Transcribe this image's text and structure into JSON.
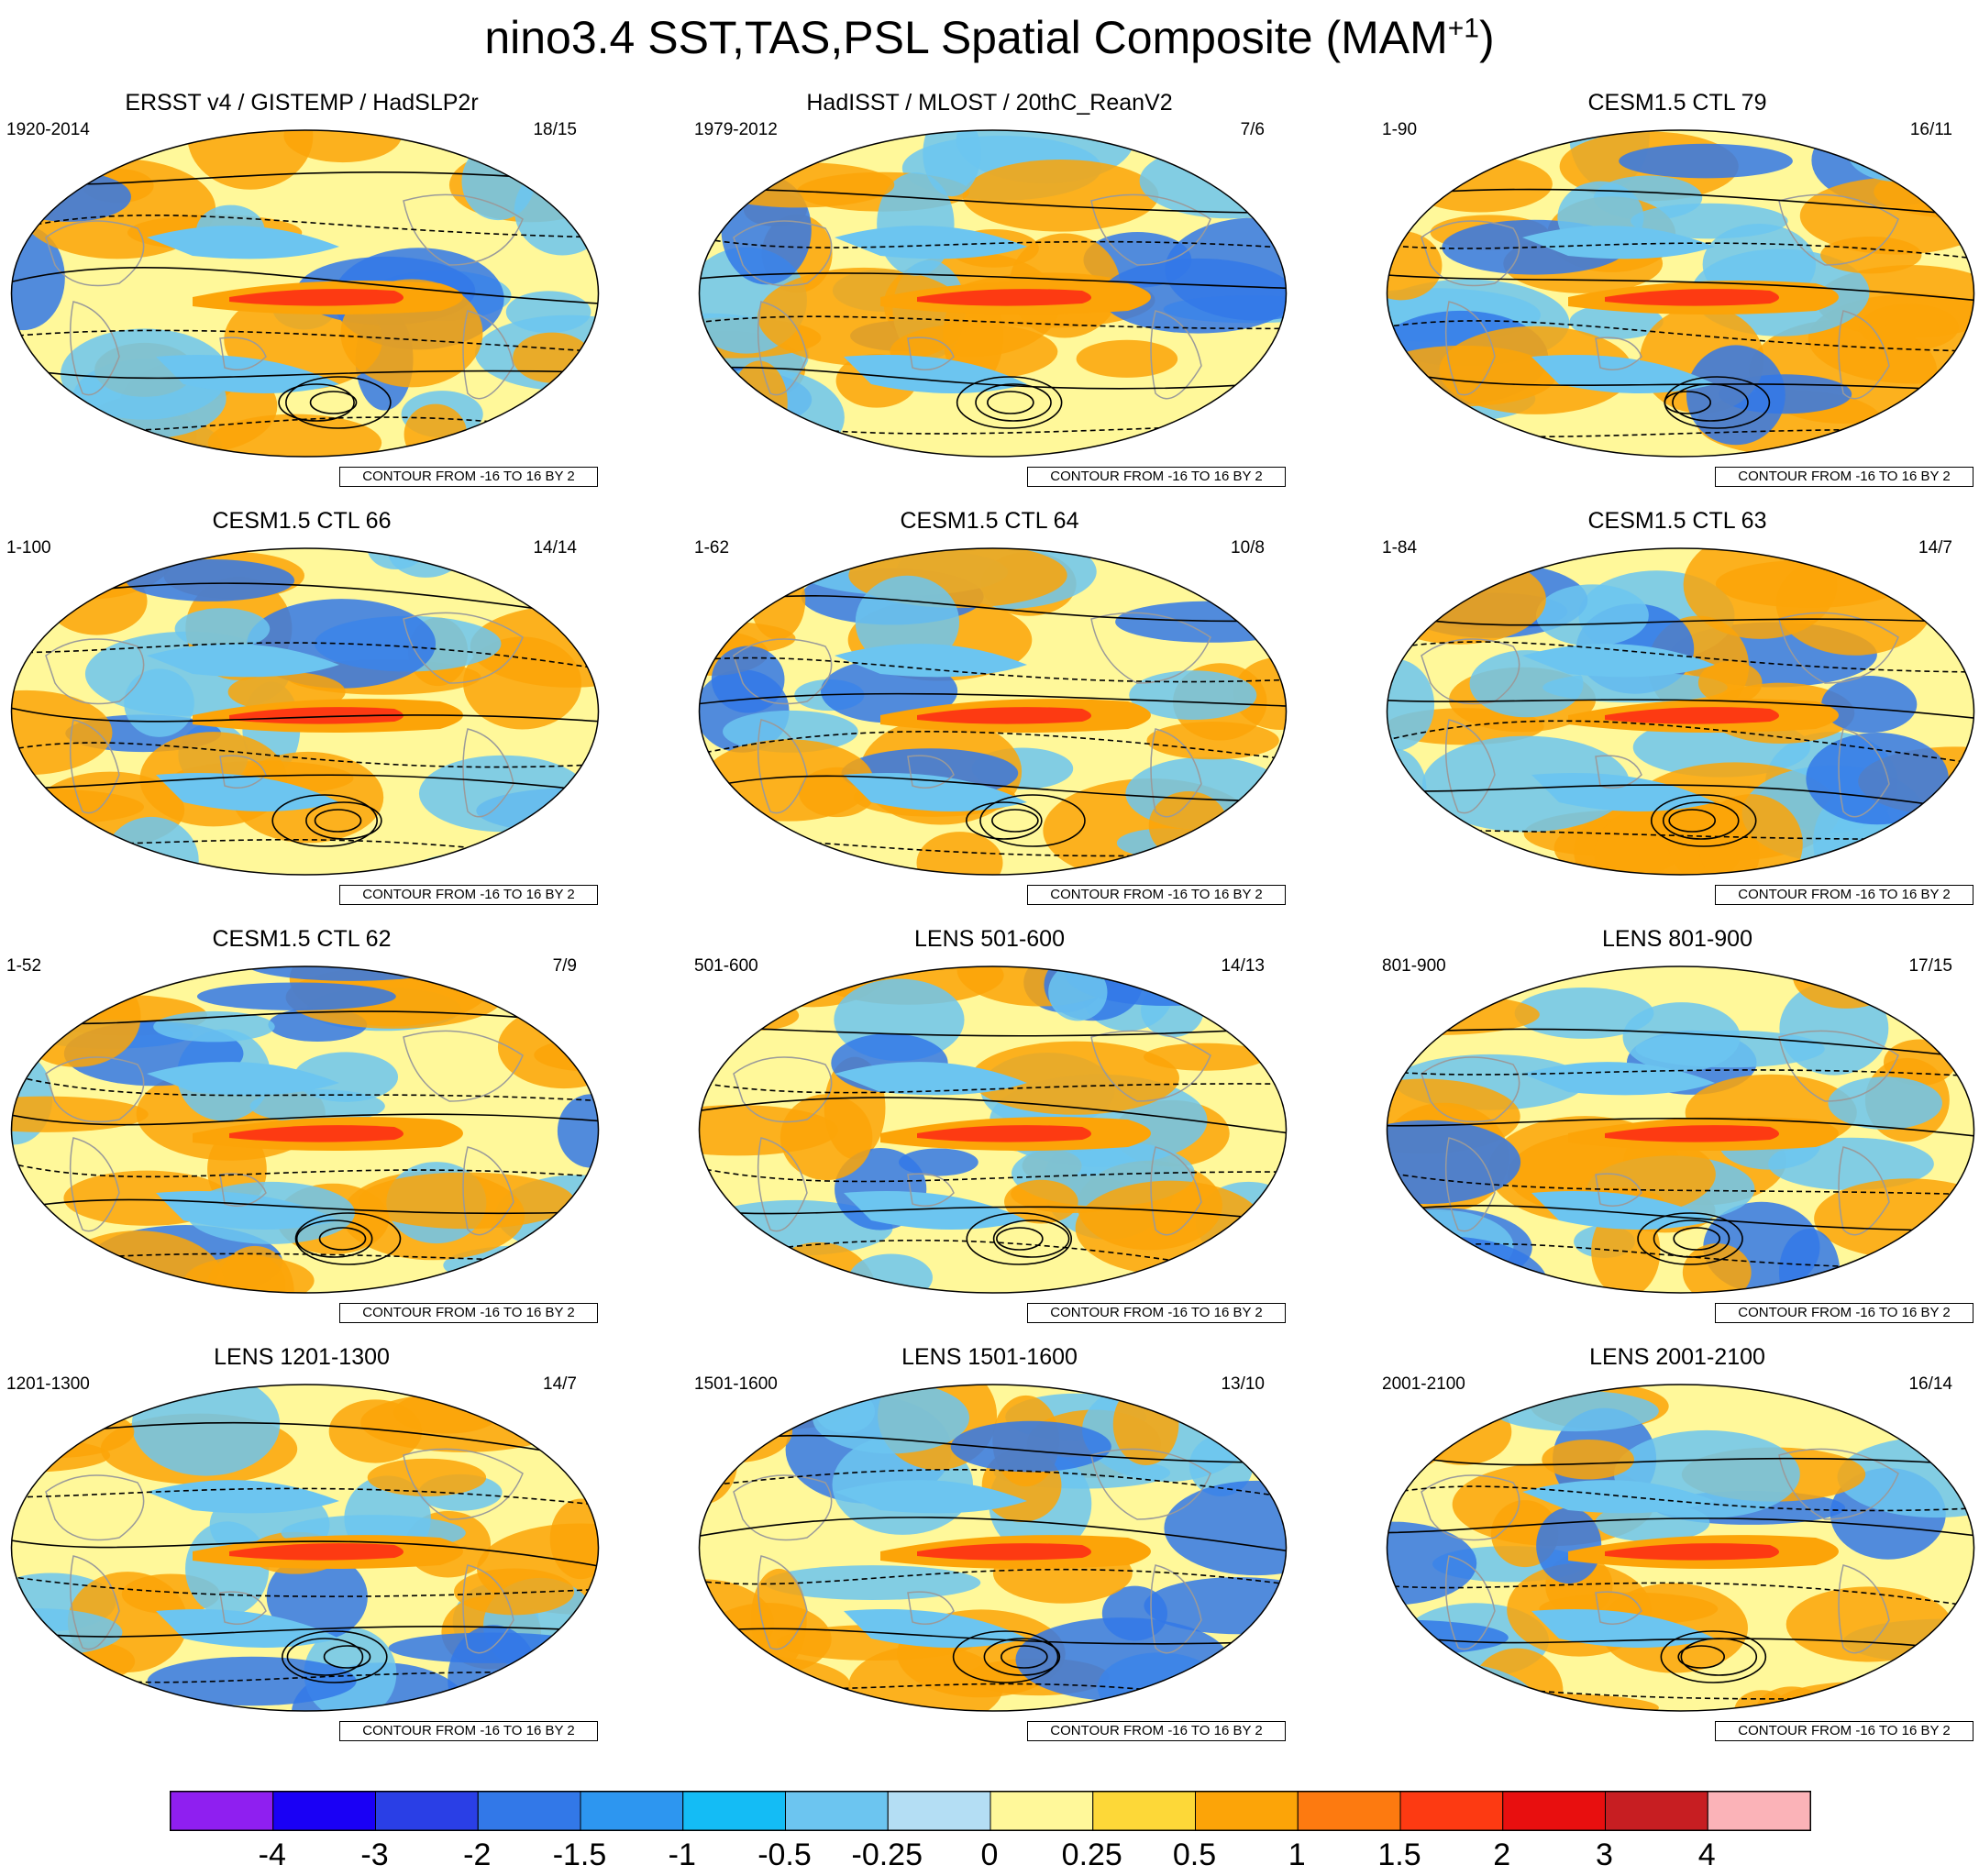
{
  "title": {
    "main": "nino3.4 SST,TAS,PSL Spatial Composite (MAM",
    "superscript": "+1",
    "suffix": ")"
  },
  "panels": [
    {
      "title": "ERSST v4 / GISTEMP / HadSLP2r",
      "left": "1920-2014",
      "right": "18/15",
      "contour": "CONTOUR FROM -16 TO 16 BY 2"
    },
    {
      "title": "HadISST / MLOST / 20thC_ReanV2",
      "left": "1979-2012",
      "right": "7/6",
      "contour": "CONTOUR FROM -16 TO 16 BY 2"
    },
    {
      "title": "CESM1.5 CTL 79",
      "left": "1-90",
      "right": "16/11",
      "contour": "CONTOUR FROM -16 TO 16 BY 2"
    },
    {
      "title": "CESM1.5 CTL 66",
      "left": "1-100",
      "right": "14/14",
      "contour": "CONTOUR FROM -16 TO 16 BY 2"
    },
    {
      "title": "CESM1.5 CTL 64",
      "left": "1-62",
      "right": "10/8",
      "contour": "CONTOUR FROM -16 TO 16 BY 2"
    },
    {
      "title": "CESM1.5 CTL 63",
      "left": "1-84",
      "right": "14/7",
      "contour": "CONTOUR FROM -16 TO 16 BY 2"
    },
    {
      "title": "CESM1.5 CTL 62",
      "left": "1-52",
      "right": "7/9",
      "contour": "CONTOUR FROM -16 TO 16 BY 2"
    },
    {
      "title": "LENS 501-600",
      "left": "501-600",
      "right": "14/13",
      "contour": "CONTOUR FROM -16 TO 16 BY 2"
    },
    {
      "title": "LENS 801-900",
      "left": "801-900",
      "right": "17/15",
      "contour": "CONTOUR FROM -16 TO 16 BY 2"
    },
    {
      "title": "LENS 1201-1300",
      "left": "1201-1300",
      "right": "14/7",
      "contour": "CONTOUR FROM -16 TO 16 BY 2"
    },
    {
      "title": "LENS 1501-1600",
      "left": "1501-1600",
      "right": "13/10",
      "contour": "CONTOUR FROM -16 TO 16 BY 2"
    },
    {
      "title": "LENS 2001-2100",
      "left": "2001-2100",
      "right": "16/14",
      "contour": "CONTOUR FROM -16 TO 16 BY 2"
    }
  ],
  "colorbar": {
    "colors": [
      "#8f1ff0",
      "#1a00f5",
      "#2a3fe6",
      "#3278e8",
      "#2d96f0",
      "#14bcf5",
      "#6cc5f0",
      "#b4def4",
      "#fff89a",
      "#fdd838",
      "#fca408",
      "#fd7a10",
      "#fd3a12",
      "#e80f0f",
      "#c71e22",
      "#fbb3b8"
    ],
    "ticks": [
      "-4",
      "-3",
      "-2",
      "-1.5",
      "-1",
      "-0.5",
      "-0.25",
      "0",
      "0.25",
      "0.5",
      "1",
      "1.5",
      "2",
      "3",
      "4"
    ]
  },
  "map_colors": {
    "ocean_base": "#fff89a",
    "warm": "#fca408",
    "hot": "#fd3a12",
    "cool": "#6cc5f0",
    "cold": "#3278e8",
    "land_outline": "#9a9a9a",
    "contour": "#000000"
  }
}
